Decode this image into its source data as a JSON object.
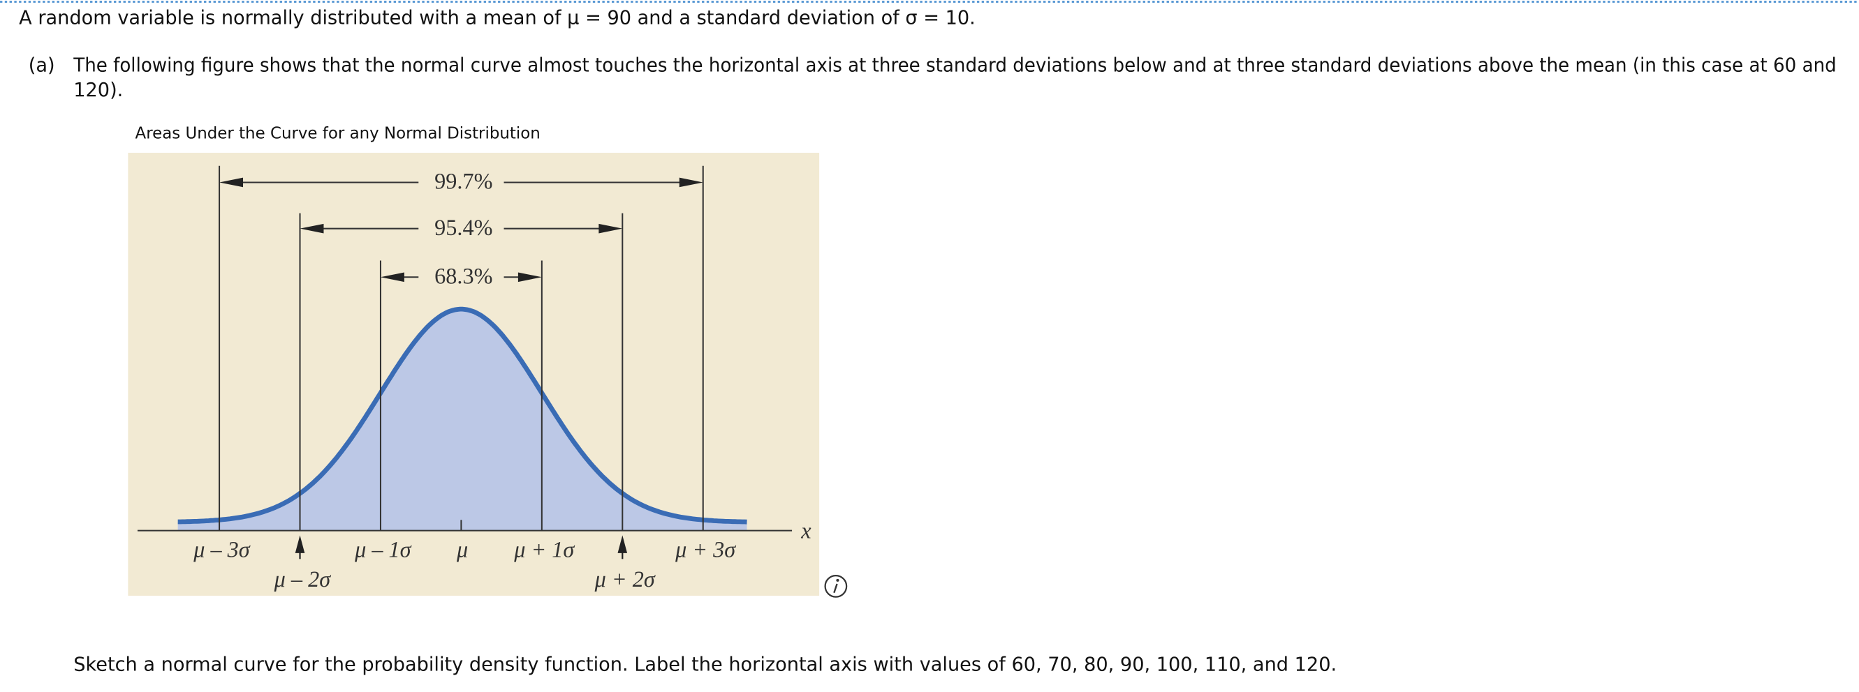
{
  "problem_statement": "A random variable is normally distributed with a mean of μ = 90 and a standard deviation of σ = 10.",
  "part_a": {
    "label": "(a)",
    "text_lines": [
      "The following figure shows that the normal curve almost touches the horizontal axis at three standard deviations below and at three standard deviations above the mean (in this case at 60 and",
      "120)."
    ]
  },
  "figure": {
    "title": "Areas Under the Curve for any Normal Distribution",
    "interval_labels": [
      "99.7%",
      "95.4%",
      "68.3%"
    ],
    "axis_label": "x",
    "tick_labels": [
      "μ – 3σ",
      "μ – 2σ",
      "μ – 1σ",
      "μ",
      "μ + 1σ",
      "μ + 2σ",
      "μ + 3σ"
    ]
  },
  "instruction": "Sketch a normal curve for the probability density function. Label the horizontal axis with values of 60, 70, 80, 90, 100, 110, and 120."
}
